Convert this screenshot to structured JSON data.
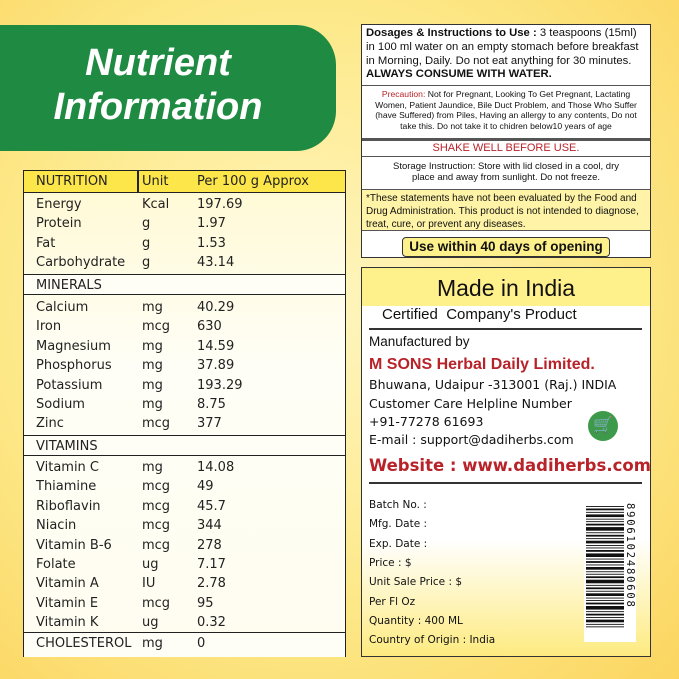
{
  "banner": {
    "line1": "Nutrient",
    "line2": "Information"
  },
  "table": {
    "headers": [
      "NUTRITION",
      "Unit",
      "Per 100 g Approx"
    ],
    "general": [
      [
        "Energy",
        "Kcal",
        "197.69"
      ],
      [
        "Protein",
        "g",
        "1.97"
      ],
      [
        "Fat",
        "g",
        "1.53"
      ],
      [
        "Carbohydrate",
        "g",
        "43.14"
      ]
    ],
    "minerals_label": "MINERALS",
    "minerals": [
      [
        "Calcium",
        "mg",
        "40.29"
      ],
      [
        "Iron",
        "mcg",
        "630"
      ],
      [
        "Magnesium",
        "mg",
        "14.59"
      ],
      [
        "Phosphorus",
        "mg",
        "37.89"
      ],
      [
        "Potassium",
        "mg",
        "193.29"
      ],
      [
        "Sodium",
        "mg",
        "8.75"
      ],
      [
        "Zinc",
        "mcg",
        "377"
      ]
    ],
    "vitamins_label": "VITAMINS",
    "vitamins": [
      [
        "Vitamin C",
        "mg",
        "14.08"
      ],
      [
        "Thiamine",
        "mcg",
        "49"
      ],
      [
        "Riboflavin",
        "mcg",
        "45.7"
      ],
      [
        "Niacin",
        "mcg",
        "344"
      ],
      [
        "Vitamin B-6",
        "mcg",
        "278"
      ],
      [
        "Folate",
        "ug",
        "7.17"
      ],
      [
        "Vitamin A",
        "IU",
        "2.78"
      ],
      [
        "Vitamin E",
        "mcg",
        "95"
      ],
      [
        "Vitamin K",
        "ug",
        "0.32"
      ]
    ],
    "cholesterol": [
      "CHOLESTEROL",
      "mg",
      "0"
    ]
  },
  "instructions": {
    "dosage_label": "Dosages & Instructions to Use :",
    "dosage_text": " 3 teaspoons (15ml) in 100 ml water on an empty stomach before breakfast in Morning, Daily. Do not eat anything for 30 minutes.",
    "always": "ALWAYS CONSUME WITH WATER.",
    "precaution_label": "Precaution:",
    "precaution_text": " Not for Pregnant, Looking To Get Pregnant, Lactating Women, Patient Jaundice, Bile Duct Problem, and Those Who Suffer (have Suffered) from Piles, Having an allergy to any contents, Do not take this. Do not take it to chidren below10 years of age",
    "shake": "SHAKE WELL BEFORE USE.",
    "storage": "Storage Instruction: Store with lid closed in a cool, dry place and away from sunlight. Do not freeze.",
    "fda": "*These statements have not been evaluated by the Food and Drug Administration. This product is not intended to diagnose, treat, cure, or prevent any diseases.",
    "use_within": "Use within 40 days of opening"
  },
  "maker": {
    "made_in": "Made in India",
    "certified": "Certified  Company's Product",
    "manufactured_by": "Manufactured by",
    "company": "M SONS Herbal Daily Limited.",
    "address": "Bhuwana, Udaipur -313001 (Raj.) INDIA",
    "helpline_label": "Customer Care Helpline Number",
    "phone": "+91-77278 61693",
    "email": "E-mail : support@dadiherbs.com",
    "website": "Website : www.dadiherbs.com",
    "cart_icon": "shopping-cart-icon",
    "cart_color": "#3d9a4a"
  },
  "details": [
    "Batch No. :",
    "Mfg. Date :",
    "Exp. Date :",
    "Price : $",
    "Unit Sale Price : $",
    "Per Fl Oz",
    "Quantity : 400 ML",
    "Country of Origin : India"
  ],
  "barcode": "8906102480608",
  "colors": {
    "green": "#1f8a41",
    "yellow": "#fde64a",
    "red": "#b8232a"
  }
}
